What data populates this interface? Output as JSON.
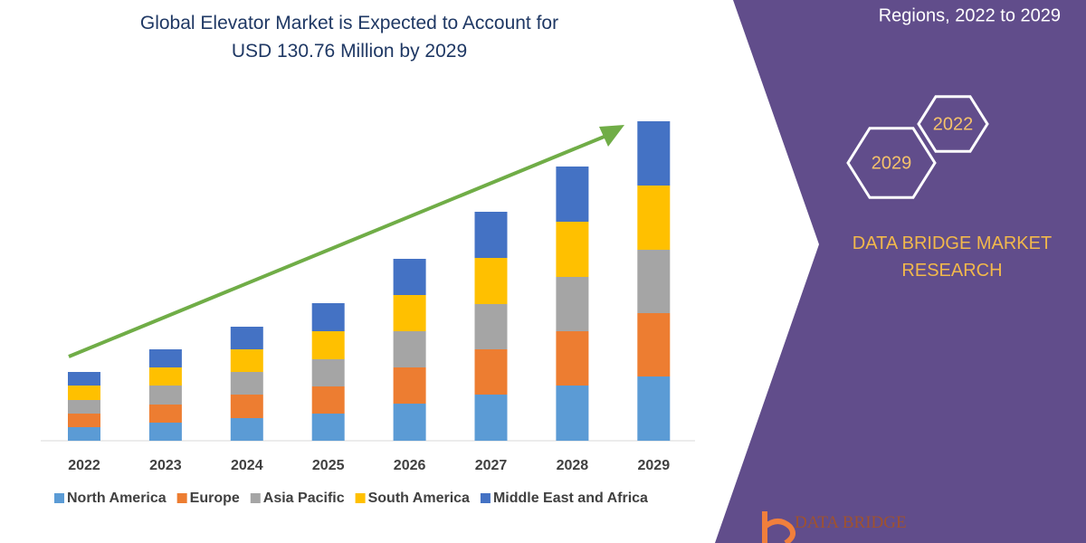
{
  "chart_data": {
    "type": "bar",
    "stacked": true,
    "title": "Global Elevator Market is Expected to Account for USD 130.76 Million by 2029",
    "categories": [
      "2022",
      "2023",
      "2024",
      "2025",
      "2026",
      "2027",
      "2028",
      "2029"
    ],
    "series": [
      {
        "name": "North America",
        "color": "#5b9bd5",
        "values": [
          15,
          20,
          25,
          30,
          41,
          51,
          61,
          71
        ]
      },
      {
        "name": "Europe",
        "color": "#ed7d31",
        "values": [
          15,
          20,
          26,
          30,
          40,
          50,
          60,
          70
        ]
      },
      {
        "name": "Asia Pacific",
        "color": "#a5a5a5",
        "values": [
          15,
          21,
          25,
          30,
          40,
          50,
          60,
          70
        ]
      },
      {
        "name": "South America",
        "color": "#ffc000",
        "values": [
          16,
          20,
          25,
          31,
          40,
          51,
          61,
          71
        ]
      },
      {
        "name": "Middle East and Africa",
        "color": "#4472c4",
        "values": [
          15,
          20,
          25,
          31,
          40,
          51,
          61,
          71
        ]
      }
    ],
    "trend_color": "#70ad47"
  },
  "panel": {
    "subtitle": "Regions, 2022 to 2029",
    "hexagons": [
      "2022",
      "2029"
    ],
    "brand": "DATA BRIDGE MARKET RESEARCH",
    "logo_text": "DATA BRIDGE"
  }
}
